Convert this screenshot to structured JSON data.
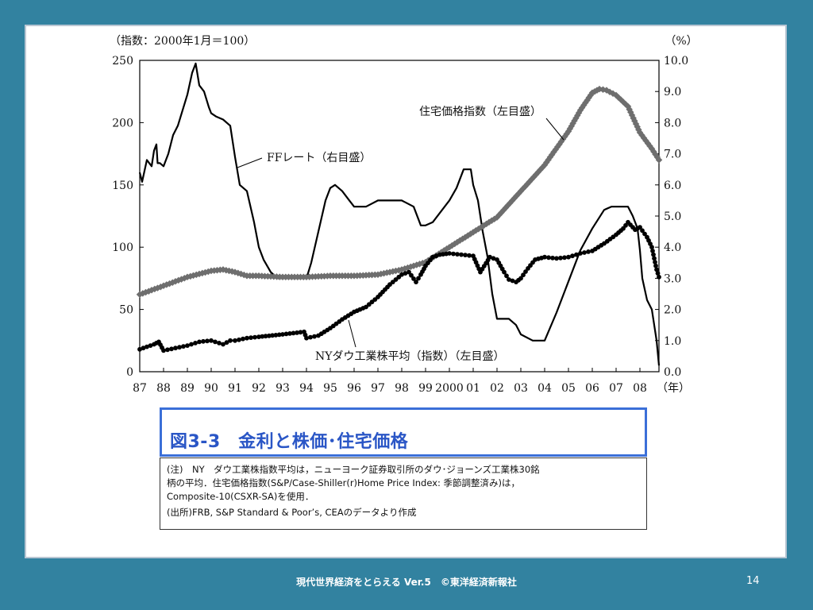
{
  "chart_data": {
    "type": "line",
    "left_unit_label": "（指数：2000年1月＝100）",
    "right_unit_label": "（%）",
    "left_ylim": [
      0,
      250
    ],
    "left_ticks": [
      "0",
      "50",
      "100",
      "150",
      "200",
      "250"
    ],
    "right_ylim": [
      0,
      10
    ],
    "right_ticks": [
      "0.0",
      "1.0",
      "2.0",
      "3.0",
      "4.0",
      "5.0",
      "6.0",
      "7.0",
      "8.0",
      "9.0",
      "10.0"
    ],
    "xlim": [
      1987,
      2008.8
    ],
    "x_tick_labels": [
      "87",
      "88",
      "89",
      "90",
      "91",
      "92",
      "93",
      "94",
      "95",
      "96",
      "97",
      "98",
      "99",
      "2000",
      "01",
      "02",
      "03",
      "04",
      "05",
      "06",
      "07",
      "08"
    ],
    "x_unit_label": "（年）",
    "grid": false,
    "series": [
      {
        "name": "FFレート（右目盛）",
        "axis": "right",
        "style": "line",
        "color": "#000000",
        "x": [
          1987.0,
          1987.1,
          1987.3,
          1987.5,
          1987.6,
          1987.7,
          1987.75,
          1987.85,
          1988.0,
          1988.2,
          1988.4,
          1988.6,
          1988.8,
          1989.0,
          1989.2,
          1989.35,
          1989.5,
          1989.7,
          1989.9,
          1990.0,
          1990.2,
          1990.5,
          1990.8,
          1991.0,
          1991.2,
          1991.5,
          1991.8,
          1992.0,
          1992.2,
          1992.5,
          1992.8,
          1993.0,
          1993.5,
          1994.0,
          1994.2,
          1994.5,
          1994.8,
          1995.0,
          1995.2,
          1995.5,
          1995.8,
          1996.0,
          1996.5,
          1997.0,
          1997.5,
          1998.0,
          1998.5,
          1998.8,
          1999.0,
          1999.3,
          1999.6,
          2000.0,
          2000.3,
          2000.6,
          2000.9,
          2001.0,
          2001.2,
          2001.4,
          2001.6,
          2001.8,
          2002.0,
          2002.5,
          2002.8,
          2003.0,
          2003.5,
          2004.0,
          2004.5,
          2004.8,
          2005.0,
          2005.5,
          2006.0,
          2006.5,
          2006.8,
          2007.0,
          2007.5,
          2007.7,
          2007.9,
          2008.0,
          2008.1,
          2008.3,
          2008.5,
          2008.7,
          2008.8
        ],
        "values": [
          6.4,
          6.1,
          6.8,
          6.6,
          7.1,
          7.3,
          6.7,
          6.7,
          6.6,
          7.0,
          7.6,
          7.9,
          8.4,
          8.9,
          9.6,
          9.9,
          9.2,
          9.0,
          8.5,
          8.3,
          8.2,
          8.1,
          7.9,
          6.9,
          6.0,
          5.8,
          4.8,
          4.0,
          3.6,
          3.2,
          3.0,
          3.0,
          3.0,
          3.0,
          3.5,
          4.5,
          5.5,
          5.9,
          6.0,
          5.8,
          5.5,
          5.3,
          5.3,
          5.5,
          5.5,
          5.5,
          5.3,
          4.7,
          4.7,
          4.8,
          5.1,
          5.5,
          5.9,
          6.5,
          6.5,
          6.0,
          5.5,
          4.5,
          3.7,
          2.5,
          1.7,
          1.7,
          1.5,
          1.2,
          1.0,
          1.0,
          1.9,
          2.5,
          2.9,
          3.9,
          4.6,
          5.2,
          5.3,
          5.3,
          5.3,
          5.0,
          4.6,
          3.9,
          3.0,
          2.3,
          2.0,
          1.0,
          0.2
        ]
      },
      {
        "name": "住宅価格指数（左目盛）",
        "axis": "left",
        "style": "thick-dotted",
        "color": "#6e6e6e",
        "x": [
          1987.0,
          1988.0,
          1989.0,
          1990.0,
          1990.5,
          1991.0,
          1991.5,
          1992.0,
          1993.0,
          1994.0,
          1995.0,
          1996.0,
          1997.0,
          1998.0,
          1999.0,
          2000.0,
          2001.0,
          2002.0,
          2003.0,
          2004.0,
          2005.0,
          2005.5,
          2006.0,
          2006.3,
          2006.6,
          2007.0,
          2007.5,
          2008.0,
          2008.5,
          2008.8
        ],
        "values": [
          62,
          69,
          76,
          81,
          82,
          80,
          77,
          77,
          76,
          76,
          77,
          77,
          78,
          82,
          88,
          100,
          112,
          124,
          145,
          166,
          193,
          210,
          224,
          227,
          226,
          222,
          213,
          192,
          179,
          170
        ]
      },
      {
        "name": "NYダウ工業株平均（指数）（左目盛）",
        "axis": "left",
        "style": "dotted",
        "color": "#000000",
        "x": [
          1987.0,
          1987.3,
          1987.6,
          1987.8,
          1988.0,
          1988.5,
          1989.0,
          1989.5,
          1990.0,
          1990.5,
          1990.8,
          1991.0,
          1991.5,
          1992.0,
          1993.0,
          1993.9,
          1994.0,
          1994.5,
          1995.0,
          1995.5,
          1996.0,
          1996.5,
          1997.0,
          1997.5,
          1998.0,
          1998.3,
          1998.6,
          1998.8,
          1999.0,
          1999.3,
          1999.6,
          2000.0,
          2000.5,
          2001.0,
          2001.3,
          2001.7,
          2002.0,
          2002.3,
          2002.5,
          2002.8,
          2003.0,
          2003.3,
          2003.6,
          2004.0,
          2004.5,
          2005.0,
          2005.5,
          2006.0,
          2006.5,
          2007.0,
          2007.3,
          2007.5,
          2007.8,
          2008.0,
          2008.3,
          2008.5,
          2008.7,
          2008.8
        ],
        "values": [
          18,
          20,
          22,
          24,
          17,
          19,
          21,
          24,
          25,
          22,
          25,
          25,
          27,
          28,
          30,
          32,
          27,
          29,
          35,
          42,
          48,
          52,
          60,
          70,
          78,
          80,
          72,
          78,
          85,
          92,
          94,
          95,
          94,
          93,
          80,
          92,
          90,
          80,
          74,
          72,
          75,
          83,
          90,
          92,
          91,
          92,
          95,
          97,
          103,
          110,
          115,
          120,
          114,
          116,
          108,
          100,
          82,
          76
        ]
      }
    ],
    "annotations": [
      {
        "text": "住宅価格指数（左目盛）",
        "target": "住宅価格指数（左目盛）"
      },
      {
        "text": "FFレート（右目盛）",
        "target": "FFレート（右目盛）"
      },
      {
        "text": "NYダウ工業株平均（指数）（左目盛）",
        "target": "NYダウ工業株平均（指数）（左目盛）"
      }
    ]
  },
  "caption": {
    "title": "図3-3　金利と株価･住宅価格"
  },
  "notes": {
    "line1": "(注)　NY　ダウ工業株指数平均は，ニューヨーク証券取引所のダウ･ジョーンズ工業株30銘",
    "line2": "柄の平均．住宅価格指数(S&P/Case-Shiller(r)Home Price Index: 季節調整済み)は，",
    "line3": "Composite-10(CSXR-SA)を使用．",
    "source": "(出所)FRB, S&P Standard & Poor’s, CEAのデータより作成"
  },
  "footer": {
    "text": "現代世界経済をとらえる Ver.5　©東洋経済新報社",
    "page_number": "14"
  },
  "colors": {
    "background": "#3282a0",
    "caption_border": "#3b6fd8",
    "caption_text": "#2a56c6"
  }
}
